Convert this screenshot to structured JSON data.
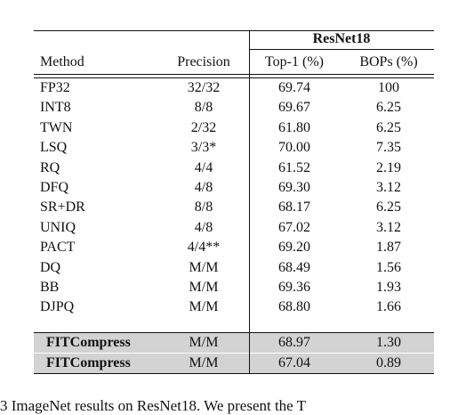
{
  "table": {
    "group_header": "ResNet18",
    "columns": [
      "Method",
      "Precision",
      "Top-1 (%)",
      "BOPs (%)"
    ],
    "rows": [
      [
        "FP32",
        "32/32",
        "69.74",
        "100"
      ],
      [
        "INT8",
        "8/8",
        "69.67",
        "6.25"
      ],
      [
        "TWN",
        "2/32",
        "61.80",
        "6.25"
      ],
      [
        "LSQ",
        "3/3*",
        "70.00",
        "7.35"
      ],
      [
        "RQ",
        "4/4",
        "61.52",
        "2.19"
      ],
      [
        "DFQ",
        "4/8",
        "69.30",
        "3.12"
      ],
      [
        "SR+DR",
        "8/8",
        "68.17",
        "6.25"
      ],
      [
        "UNIQ",
        "4/8",
        "67.02",
        "3.12"
      ],
      [
        "PACT",
        "4/4**",
        "69.20",
        "1.87"
      ],
      [
        "DQ",
        "M/M",
        "68.49",
        "1.56"
      ],
      [
        "BB",
        "M/M",
        "69.36",
        "1.93"
      ],
      [
        "DJPQ",
        "M/M",
        "68.80",
        "1.66"
      ]
    ],
    "highlight_rows": [
      [
        "FITCompress",
        "M/M",
        "68.97",
        "1.30"
      ],
      [
        "FITCompress",
        "M/M",
        "67.04",
        "0.89"
      ]
    ]
  },
  "caption": "3 ImageNet results on ResNet18. We present the T"
}
